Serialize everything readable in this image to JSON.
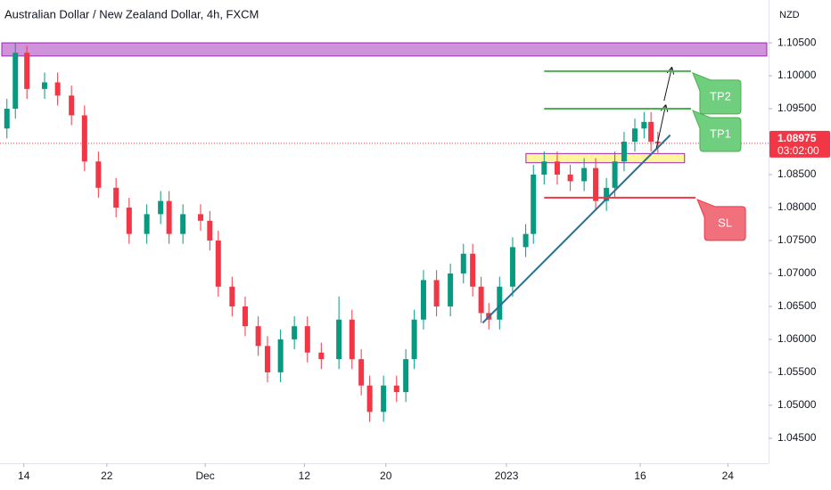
{
  "chart_data": {
    "type": "candlestick",
    "title": "Australian Dollar / New Zealand Dollar, 4h, FXCM",
    "y_axis_label": "NZD",
    "x": [
      0.9,
      2.0,
      3.5,
      5.8,
      7.5,
      9.3,
      11.0,
      12.8,
      15.1,
      16.8,
      19.1,
      20.9,
      22.0,
      23.8,
      26.1,
      27.3,
      28.4,
      30.2,
      31.9,
      33.6,
      34.8,
      36.5,
      38.3,
      40.0,
      41.8,
      44.1,
      45.8,
      47.0,
      48.1,
      49.9,
      51.6,
      52.8,
      53.9,
      55.1,
      56.8,
      58.6,
      60.3,
      61.5,
      62.6,
      63.6,
      65.0,
      66.7,
      68.4,
      69.4,
      70.8,
      72.5,
      74.2,
      76.0,
      77.5,
      78.9,
      80.0,
      81.2,
      82.6,
      83.8,
      84.7,
      85.6
    ],
    "open": [
      1.092,
      1.095,
      1.1035,
      1.098,
      1.099,
      1.097,
      1.094,
      1.087,
      1.083,
      1.08,
      1.076,
      1.079,
      1.081,
      1.076,
      1.079,
      1.078,
      1.075,
      1.068,
      1.065,
      1.062,
      1.059,
      1.055,
      1.06,
      1.062,
      1.058,
      1.057,
      1.063,
      1.057,
      1.053,
      1.049,
      1.053,
      1.052,
      1.057,
      1.063,
      1.069,
      1.065,
      1.07,
      1.073,
      1.068,
      1.064,
      1.063,
      1.068,
      1.074,
      1.076,
      1.085,
      1.087,
      1.085,
      1.084,
      1.086,
      1.081,
      1.083,
      1.087,
      1.09,
      1.092,
      1.093,
      1.09
    ],
    "high": [
      1.0965,
      1.105,
      1.1045,
      1.1005,
      1.1005,
      1.0985,
      1.0955,
      1.0885,
      1.0845,
      1.0815,
      1.0805,
      1.0825,
      1.0825,
      1.0805,
      1.0805,
      1.0795,
      1.0765,
      1.0695,
      1.0665,
      1.0635,
      1.0605,
      1.0615,
      1.0635,
      1.0635,
      1.0595,
      1.0665,
      1.0645,
      1.0585,
      1.0545,
      1.0545,
      1.0545,
      1.0585,
      1.0645,
      1.0705,
      1.0705,
      1.0715,
      1.0745,
      1.0745,
      1.0695,
      1.0655,
      1.0695,
      1.0755,
      1.0775,
      1.0865,
      1.0885,
      1.0885,
      1.0865,
      1.0875,
      1.0875,
      1.0845,
      1.0885,
      1.0915,
      1.0935,
      1.0945,
      1.0945,
      1.0915
    ],
    "low": [
      1.0905,
      1.0935,
      1.0965,
      1.0965,
      1.0955,
      1.0925,
      1.0855,
      1.0815,
      1.0785,
      1.0745,
      1.0745,
      1.0775,
      1.0745,
      1.0745,
      1.0765,
      1.0735,
      1.0665,
      1.0635,
      1.0605,
      1.0575,
      1.0535,
      1.0535,
      1.0585,
      1.0565,
      1.0555,
      1.0555,
      1.0555,
      1.0515,
      1.0475,
      1.0475,
      1.0505,
      1.0505,
      1.0555,
      1.0615,
      1.0635,
      1.0635,
      1.0685,
      1.0665,
      1.0625,
      1.0615,
      1.0615,
      1.0665,
      1.0725,
      1.0745,
      1.0835,
      1.0835,
      1.0825,
      1.0825,
      1.0795,
      1.0795,
      1.0815,
      1.0855,
      1.0885,
      1.0905,
      1.0885,
      1.0883
    ],
    "close": [
      1.095,
      1.1035,
      1.098,
      1.099,
      1.097,
      1.094,
      1.087,
      1.083,
      1.08,
      1.076,
      1.079,
      1.081,
      1.076,
      1.079,
      1.078,
      1.075,
      1.068,
      1.065,
      1.062,
      1.059,
      1.055,
      1.06,
      1.062,
      1.058,
      1.057,
      1.063,
      1.057,
      1.053,
      1.049,
      1.053,
      1.052,
      1.057,
      1.063,
      1.069,
      1.065,
      1.07,
      1.073,
      1.068,
      1.064,
      1.063,
      1.068,
      1.074,
      1.076,
      1.085,
      1.087,
      1.085,
      1.084,
      1.086,
      1.081,
      1.083,
      1.087,
      1.09,
      1.092,
      1.093,
      1.09,
      1.0898
    ],
    "up_color": "#089981",
    "down_color": "#f23645",
    "xlim": [
      0,
      100
    ],
    "xticks": [
      {
        "value": 3.1,
        "label": "14"
      },
      {
        "value": 13.9,
        "label": "22"
      },
      {
        "value": 26.7,
        "label": "Dec"
      },
      {
        "value": 39.6,
        "label": "12"
      },
      {
        "value": 50.2,
        "label": "20"
      },
      {
        "value": 65.9,
        "label": "2023"
      },
      {
        "value": 83.3,
        "label": "16"
      },
      {
        "value": 94.7,
        "label": "24"
      }
    ],
    "ylim": [
      1.0412,
      1.1115
    ],
    "yticks": [
      {
        "value": 1.105,
        "label": "1.10500"
      },
      {
        "value": 1.1,
        "label": "1.10000"
      },
      {
        "value": 1.095,
        "label": "1.09500"
      },
      {
        "value": 1.085,
        "label": "1.08500"
      },
      {
        "value": 1.08,
        "label": "1.08000"
      },
      {
        "value": 1.075,
        "label": "1.07500"
      },
      {
        "value": 1.07,
        "label": "1.07000"
      },
      {
        "value": 1.065,
        "label": "1.06500"
      },
      {
        "value": 1.06,
        "label": "1.06000"
      },
      {
        "value": 1.055,
        "label": "1.05500"
      },
      {
        "value": 1.05,
        "label": "1.05000"
      },
      {
        "value": 1.045,
        "label": "1.04500"
      }
    ],
    "grid": false,
    "last_price": 1.08975,
    "countdown": "03:02:00",
    "last_price_color": "#f23645",
    "zones": [
      {
        "color": "#ce93d8",
        "border": "#9c27b0",
        "x": [
          0,
          100
        ],
        "y": [
          1.103,
          1.105
        ]
      },
      {
        "color": "#fff59d",
        "border": "#9c27b0",
        "x": [
          68.2,
          89.3
        ],
        "y": [
          1.0868,
          1.0882
        ]
      }
    ],
    "levels": [
      {
        "name": "TP2",
        "value": 1.1007,
        "x": [
          70.8,
          89.9
        ],
        "color": "#4caf50",
        "fill": "#6fcf7f"
      },
      {
        "name": "TP1",
        "value": 1.095,
        "x": [
          70.8,
          89.9
        ],
        "color": "#4caf50",
        "fill": "#6fcf7f"
      },
      {
        "name": "SL",
        "value": 1.0815,
        "x": [
          70.8,
          90.5
        ],
        "color": "#f23645",
        "fill": "#f0707c"
      }
    ],
    "trendline": {
      "x": [
        62.8,
        87.2
      ],
      "y": [
        1.0625,
        1.091
      ],
      "color": "#2a6f97"
    },
    "arrows": [
      {
        "x": [
          85.4,
          86.6
        ],
        "y": [
          1.089,
          1.0955
        ]
      },
      {
        "x": [
          86.4,
          87.4
        ],
        "y": [
          1.0962,
          1.1012
        ]
      }
    ]
  }
}
